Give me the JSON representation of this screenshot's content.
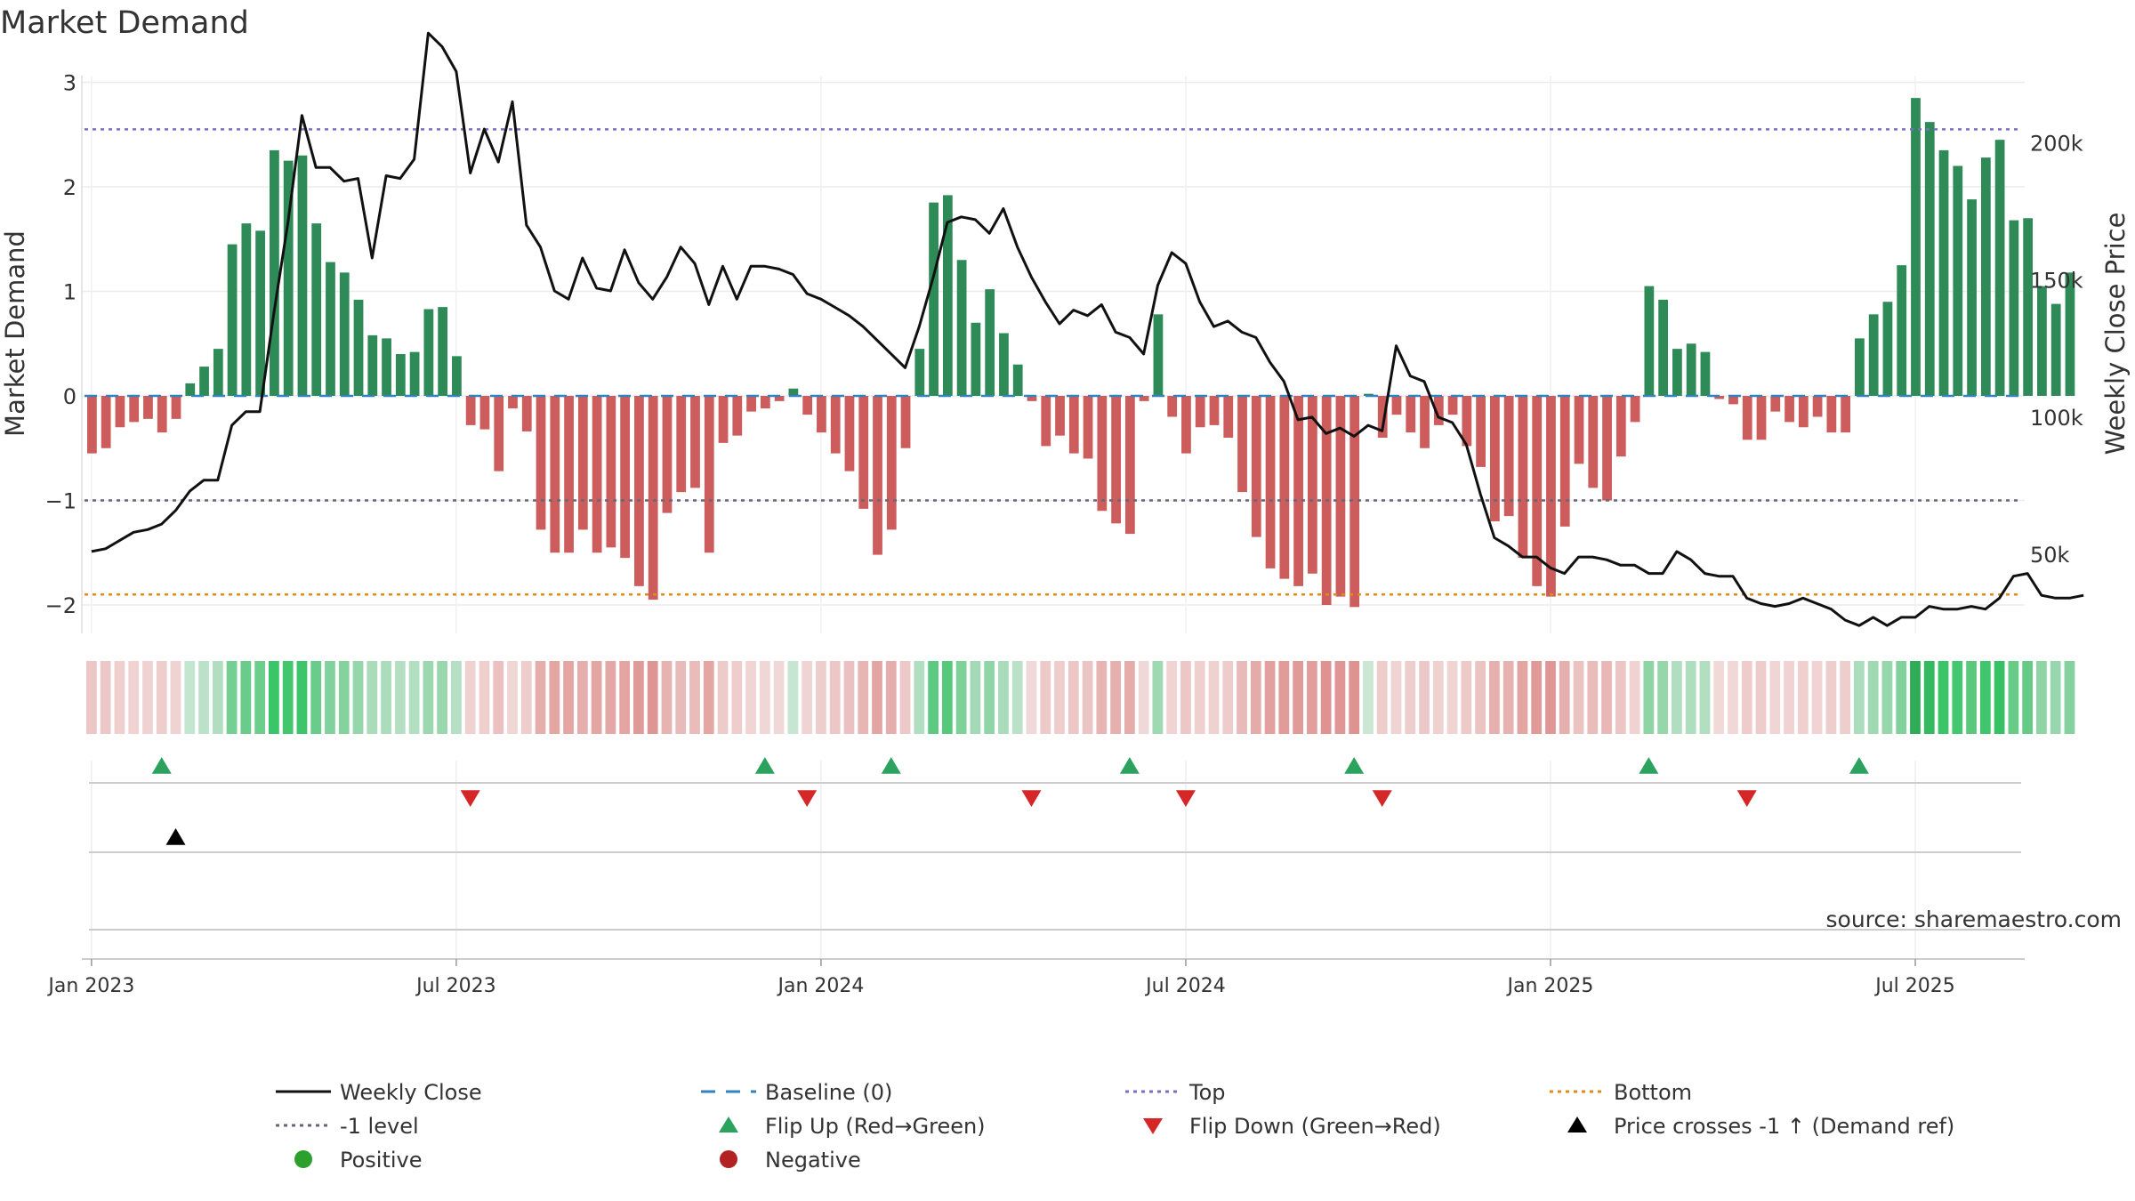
{
  "chart_data": {
    "type": "bar",
    "title": "Market Demand",
    "ylabel": "Market Demand",
    "ylabel_right": "Weekly Close Price",
    "ylim": [
      -2.3,
      3.1
    ],
    "y2lim": [
      15000,
      230000
    ],
    "yticks": [
      3,
      2,
      1,
      0,
      -1,
      -2
    ],
    "yticks_labels": [
      "3",
      "2",
      "1",
      "0",
      "−1",
      "−2"
    ],
    "y2ticks": [
      200000,
      150000,
      100000,
      50000
    ],
    "y2ticks_labels": [
      "200k",
      "150k",
      "100k",
      "50k"
    ],
    "reference_lines": {
      "top": 2.55,
      "minus_one": -1,
      "bottom": -1.9,
      "baseline": 0
    },
    "x_weeks_start": "2023-01-02",
    "xticks": [
      {
        "week": 0,
        "label": "Jan 2023"
      },
      {
        "week": 26,
        "label": "Jul 2023"
      },
      {
        "week": 52,
        "label": "Jan 2024"
      },
      {
        "week": 78,
        "label": "Jul 2024"
      },
      {
        "week": 104,
        "label": "Jan 2025"
      },
      {
        "week": 130,
        "label": "Jul 2025"
      }
    ],
    "demand": [
      -0.55,
      -0.5,
      -0.3,
      -0.25,
      -0.22,
      -0.35,
      -0.22,
      0.12,
      0.28,
      0.45,
      1.45,
      1.65,
      1.58,
      2.35,
      2.25,
      2.3,
      1.65,
      1.28,
      1.18,
      0.92,
      0.58,
      0.55,
      0.4,
      0.42,
      0.83,
      0.85,
      0.38,
      -0.28,
      -0.32,
      -0.72,
      -0.12,
      -0.34,
      -1.28,
      -1.5,
      -1.5,
      -1.28,
      -1.5,
      -1.45,
      -1.55,
      -1.82,
      -1.95,
      -1.12,
      -0.92,
      -0.88,
      -1.5,
      -0.45,
      -0.38,
      -0.15,
      -0.12,
      -0.05,
      0.07,
      -0.18,
      -0.35,
      -0.55,
      -0.72,
      -1.08,
      -1.52,
      -1.28,
      -0.5,
      0.45,
      1.85,
      1.92,
      1.3,
      0.7,
      1.02,
      0.6,
      0.3,
      -0.05,
      -0.48,
      -0.38,
      -0.55,
      -0.6,
      -1.1,
      -1.22,
      -1.32,
      -0.05,
      0.78,
      -0.2,
      -0.55,
      -0.3,
      -0.28,
      -0.4,
      -0.92,
      -1.35,
      -1.65,
      -1.75,
      -1.82,
      -1.7,
      -2.0,
      -1.92,
      -2.02,
      0.02,
      -0.4,
      -0.18,
      -0.35,
      -0.5,
      -0.28,
      -0.18,
      -0.48,
      -0.68,
      -1.2,
      -1.15,
      -1.55,
      -1.82,
      -1.92,
      -1.25,
      -0.65,
      -0.88,
      -1.0,
      -0.58,
      -0.25,
      1.05,
      0.92,
      0.45,
      0.5,
      0.42,
      -0.03,
      -0.08,
      -0.42,
      -0.42,
      -0.15,
      -0.25,
      -0.3,
      -0.2,
      -0.35,
      -0.35,
      0.55,
      0.78,
      0.9,
      1.25,
      2.85,
      2.62,
      2.35,
      2.2,
      1.88,
      2.28,
      2.45,
      1.68,
      1.7,
      1.05,
      0.88,
      1.18
    ],
    "weekly_close": [
      51000,
      52000,
      55000,
      58000,
      59000,
      61000,
      66000,
      73000,
      77000,
      77000,
      97000,
      102000,
      102000,
      138000,
      171000,
      210000,
      191000,
      191000,
      186000,
      187000,
      158000,
      188000,
      187000,
      194000,
      240000,
      235000,
      226000,
      189000,
      205000,
      193000,
      215000,
      170000,
      162000,
      146000,
      143000,
      158000,
      147000,
      146000,
      161000,
      149000,
      143000,
      151000,
      162000,
      156000,
      141000,
      155000,
      143000,
      155000,
      155000,
      154000,
      152000,
      145000,
      143000,
      140000,
      137000,
      133000,
      128000,
      123000,
      118000,
      133000,
      151000,
      171000,
      173000,
      172000,
      167000,
      176000,
      162000,
      151000,
      142000,
      134000,
      139000,
      137000,
      141000,
      131000,
      129000,
      123000,
      148000,
      160000,
      156000,
      142000,
      133000,
      135000,
      131000,
      129000,
      120000,
      113000,
      99000,
      100000,
      94000,
      96000,
      93000,
      97000,
      95000,
      126000,
      115000,
      113000,
      100000,
      98000,
      90000,
      72000,
      56000,
      53000,
      49000,
      49000,
      45000,
      43000,
      49000,
      49000,
      48000,
      46000,
      46000,
      43000,
      43000,
      51000,
      48000,
      43000,
      42000,
      42000,
      34000,
      32000,
      31000,
      32000,
      34000,
      32000,
      30000,
      26000,
      24000,
      27000,
      24000,
      27000,
      27000,
      31000,
      30000,
      30000,
      31000,
      30000,
      34000,
      42000,
      43000,
      35000,
      34000,
      34000,
      35000
    ],
    "flip_up_weeks": [
      5,
      48,
      57,
      74,
      90,
      111,
      126
    ],
    "flip_down_weeks": [
      27,
      51,
      67,
      78,
      92,
      118
    ],
    "price_cross_weeks": [
      6
    ],
    "source_text": "source: sharemaestro.com",
    "legend": [
      {
        "label": "Weekly Close",
        "kind": "line-solid",
        "color": "#111111"
      },
      {
        "label": "Baseline (0)",
        "kind": "line-dash",
        "color": "#3182bd"
      },
      {
        "label": "Top",
        "kind": "line-dot",
        "color": "#7b6fc4"
      },
      {
        "label": "Bottom",
        "kind": "line-dot",
        "color": "#e08b1a"
      },
      {
        "label": "-1 level",
        "kind": "line-dot",
        "color": "#666677"
      },
      {
        "label": "Flip Up (Red→Green)",
        "kind": "tri-up",
        "color": "#2ca25f"
      },
      {
        "label": "Flip Down (Green→Red)",
        "kind": "tri-down",
        "color": "#d62728"
      },
      {
        "label": "Price crosses -1 ↑ (Demand ref)",
        "kind": "tri-up",
        "color": "#000000"
      },
      {
        "label": "Positive",
        "kind": "dot",
        "color": "#2ca02c"
      },
      {
        "label": "Negative",
        "kind": "dot",
        "color": "#b22222"
      }
    ],
    "colors": {
      "positive_bar": "#2e8b57",
      "negative_bar": "#cd5c5c",
      "close_line": "#111111",
      "baseline": "#3182bd",
      "top": "#7b6fc4",
      "minus_one": "#666677",
      "bottom": "#e08b1a",
      "flip_up": "#2ca25f",
      "flip_down": "#d62728",
      "price_cross": "#000000"
    }
  }
}
